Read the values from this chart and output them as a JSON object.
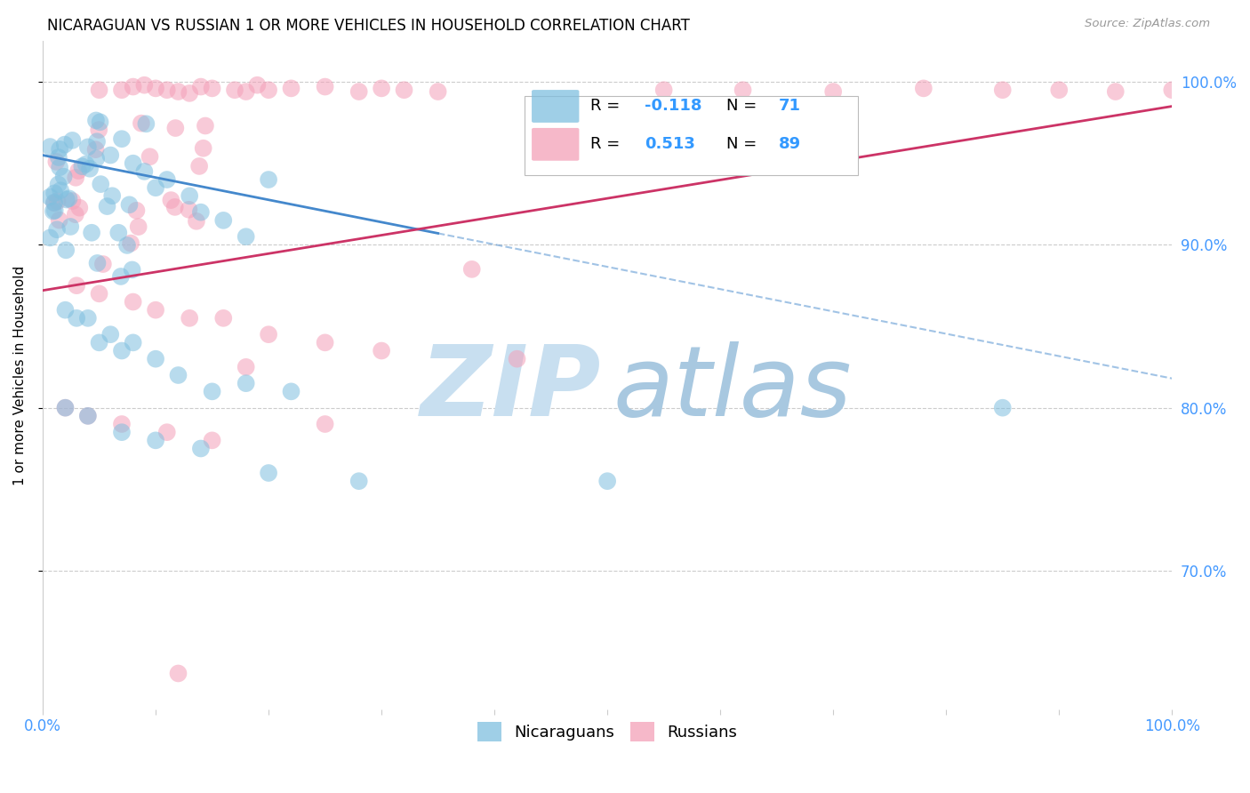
{
  "title": "NICARAGUAN VS RUSSIAN 1 OR MORE VEHICLES IN HOUSEHOLD CORRELATION CHART",
  "source": "Source: ZipAtlas.com",
  "ylabel": "1 or more Vehicles in Household",
  "blue_R": -0.118,
  "blue_N": 71,
  "pink_R": 0.513,
  "pink_N": 89,
  "blue_color": "#7fbfdf",
  "pink_color": "#f4a0b8",
  "blue_line_color": "#4488cc",
  "pink_line_color": "#cc3366",
  "blue_line_solid_end": 0.35,
  "xlim": [
    0.0,
    1.0
  ],
  "ylim": [
    0.615,
    1.025
  ],
  "blue_line_y0": 0.955,
  "blue_line_y1": 0.818,
  "pink_line_y0": 0.872,
  "pink_line_y1": 0.985,
  "grid_color": "#cccccc",
  "tick_color": "#4499ff",
  "watermark_zip_color": "#c8dff0",
  "watermark_atlas_color": "#a8c8e0"
}
